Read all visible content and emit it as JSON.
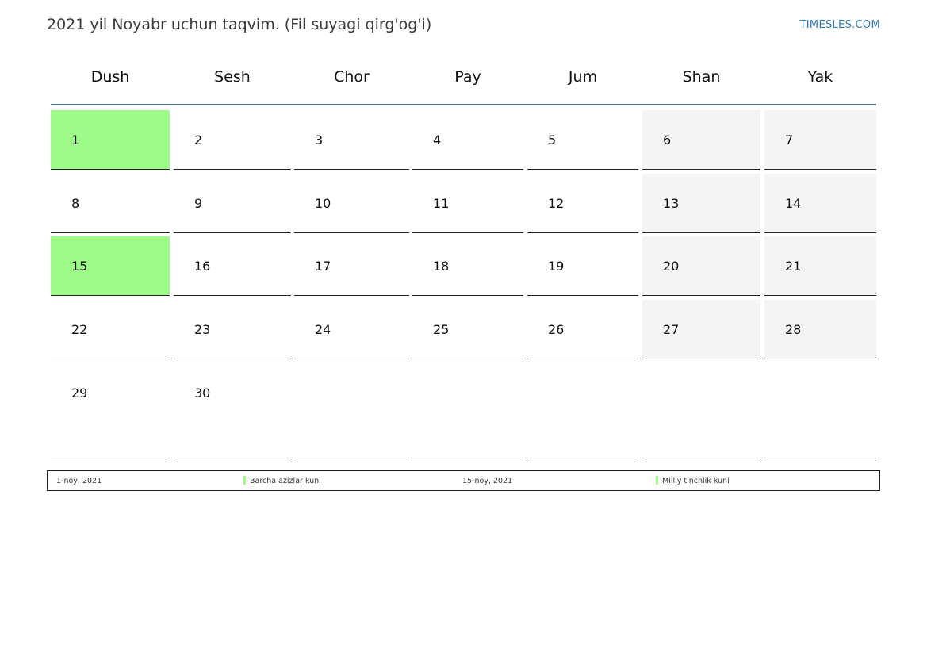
{
  "header": {
    "title": "2021 yil Noyabr uchun taqvim. (Fil suyagi qirg'og'i)",
    "brand": "TIMESLES.COM"
  },
  "weekdays": [
    "Dush",
    "Sesh",
    "Chor",
    "Pay",
    "Jum",
    "Shan",
    "Yak"
  ],
  "weeks": [
    [
      "1",
      "2",
      "3",
      "4",
      "5",
      "6",
      "7"
    ],
    [
      "8",
      "9",
      "10",
      "11",
      "12",
      "13",
      "14"
    ],
    [
      "15",
      "16",
      "17",
      "18",
      "19",
      "20",
      "21"
    ],
    [
      "22",
      "23",
      "24",
      "25",
      "26",
      "27",
      "28"
    ],
    [
      "29",
      "30",
      "",
      "",
      "",
      "",
      ""
    ]
  ],
  "holiday_days": [
    "1",
    "15"
  ],
  "colors": {
    "holiday": "#9dfc88",
    "weekend": "#f4f4f4",
    "header_rule": "#56708f",
    "brand": "#2a7ab8"
  },
  "legend": [
    {
      "date": "1-noy, 2021",
      "name": "Barcha azizlar kuni"
    },
    {
      "date": "15-noy, 2021",
      "name": "Milliy tinchlik kuni"
    }
  ]
}
